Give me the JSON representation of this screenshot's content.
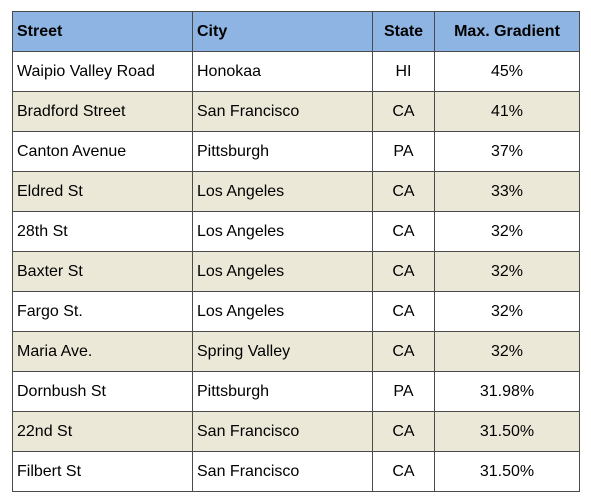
{
  "table": {
    "headers": {
      "street": "Street",
      "city": "City",
      "state": "State",
      "gradient": "Max. Gradient"
    },
    "rows": [
      {
        "street": "Waipio Valley Road",
        "city": "Honokaa",
        "state": "HI",
        "gradient": "45%"
      },
      {
        "street": "Bradford Street",
        "city": "San Francisco",
        "state": "CA",
        "gradient": "41%"
      },
      {
        "street": "Canton Avenue",
        "city": "Pittsburgh",
        "state": "PA",
        "gradient": "37%"
      },
      {
        "street": "Eldred St",
        "city": "Los Angeles",
        "state": "CA",
        "gradient": "33%"
      },
      {
        "street": "28th St",
        "city": "Los Angeles",
        "state": "CA",
        "gradient": "32%"
      },
      {
        "street": "Baxter St",
        "city": "Los Angeles",
        "state": "CA",
        "gradient": "32%"
      },
      {
        "street": "Fargo St.",
        "city": "Los Angeles",
        "state": "CA",
        "gradient": "32%"
      },
      {
        "street": "Maria Ave.",
        "city": "Spring Valley",
        "state": "CA",
        "gradient": "32%"
      },
      {
        "street": "Dornbush St",
        "city": "Pittsburgh",
        "state": "PA",
        "gradient": "31.98%"
      },
      {
        "street": "22nd St",
        "city": "San Francisco",
        "state": "CA",
        "gradient": "31.50%"
      },
      {
        "street": "Filbert St",
        "city": "San Francisco",
        "state": "CA",
        "gradient": "31.50%"
      }
    ]
  },
  "colors": {
    "header_bg": "#8db4e2",
    "shaded_row_bg": "#ece8d8",
    "plain_row_bg": "#ffffff",
    "border": "#4a4a4a"
  }
}
